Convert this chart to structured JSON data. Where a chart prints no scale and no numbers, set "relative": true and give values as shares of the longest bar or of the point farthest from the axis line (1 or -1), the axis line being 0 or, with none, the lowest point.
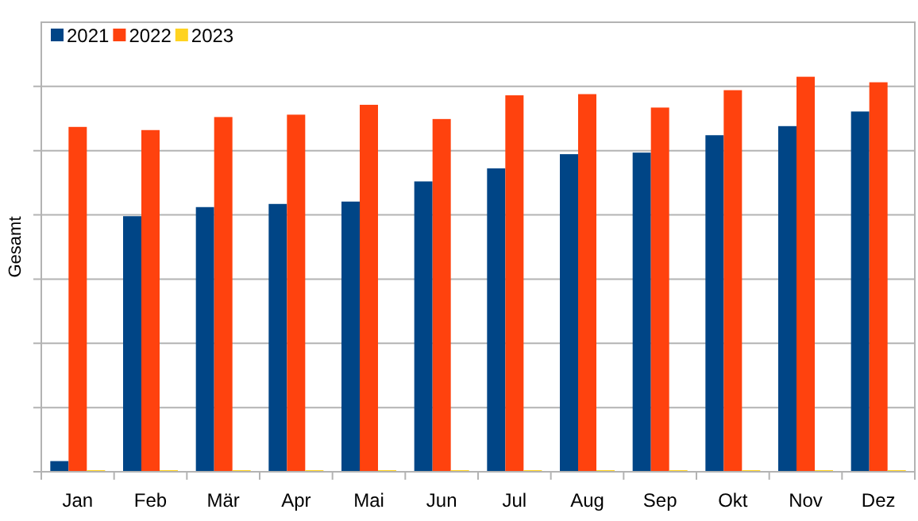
{
  "chart_data": {
    "type": "bar",
    "ylabel": "Gesamt",
    "relative": true,
    "grid": "y",
    "legend": "top left",
    "categories": [
      "Jan",
      "Feb",
      "Mär",
      "Apr",
      "Mai",
      "Jun",
      "Jul",
      "Aug",
      "Sep",
      "Okt",
      "Nov",
      "Dez"
    ],
    "series": [
      {
        "name": "2021",
        "color": "#004586",
        "values": [
          0.027,
          0.647,
          0.67,
          0.678,
          0.684,
          0.735,
          0.768,
          0.804,
          0.808,
          0.852,
          0.875,
          0.912
        ]
      },
      {
        "name": "2022",
        "color": "#ff420e",
        "values": [
          0.873,
          0.865,
          0.898,
          0.904,
          0.929,
          0.893,
          0.953,
          0.956,
          0.922,
          0.966,
          1,
          0.986
        ]
      },
      {
        "name": "2023",
        "color": "#ffd320",
        "values": [
          0,
          0,
          0,
          0,
          0,
          0,
          0,
          0,
          0,
          0,
          0,
          0
        ]
      }
    ]
  }
}
